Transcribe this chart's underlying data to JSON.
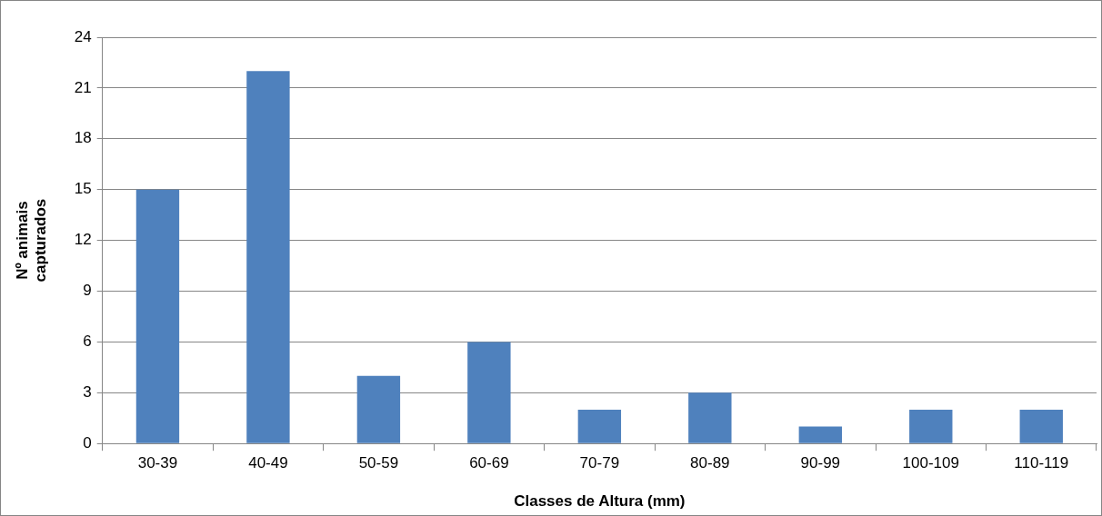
{
  "chart_data": {
    "type": "bar",
    "xlabel": "Classes de Altura (mm)",
    "ylabel": "Nº animais capturados",
    "categories": [
      "30-39",
      "40-49",
      "50-59",
      "60-69",
      "70-79",
      "80-89",
      "90-99",
      "100-109",
      "110-119"
    ],
    "values": [
      15,
      22,
      4,
      6,
      2,
      3,
      1,
      2,
      2
    ],
    "color": "#4f81bd",
    "ylim": [
      0,
      24
    ],
    "yticks": [
      0,
      3,
      6,
      9,
      12,
      15,
      18,
      21,
      24
    ],
    "grid": "y",
    "legend": false
  }
}
